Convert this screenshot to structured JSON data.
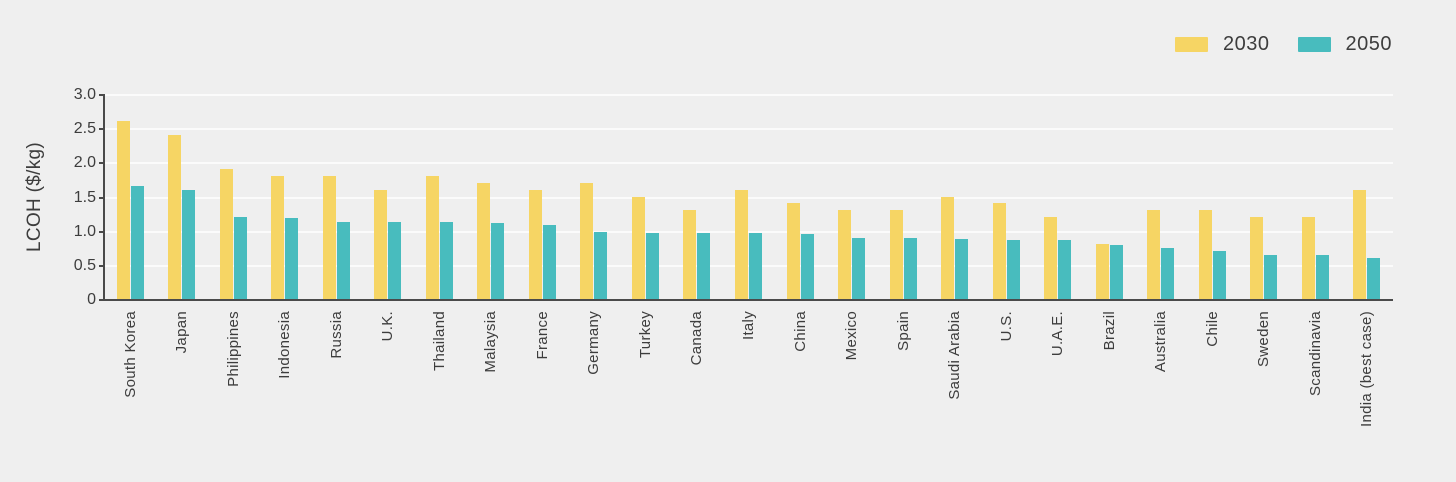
{
  "chart_data": {
    "type": "bar",
    "title": "",
    "xlabel": "",
    "ylabel": "LCOH ($/kg)",
    "ylim": [
      0,
      3.0
    ],
    "grid": "horizontal",
    "legend_position": "top-right",
    "background_color": "#efefef",
    "axis_color": "#4a4a4a",
    "text_color": "#3d3d3d",
    "yticks": [
      {
        "label": "3.0",
        "value": 3.0
      },
      {
        "label": "2.5",
        "value": 2.5
      },
      {
        "label": "2.0",
        "value": 2.0
      },
      {
        "label": "1.5",
        "value": 1.5
      },
      {
        "label": "1.0",
        "value": 1.0
      },
      {
        "label": "0.5",
        "value": 0.5
      },
      {
        "label": "0",
        "value": 0.0
      }
    ],
    "categories": [
      "South Korea",
      "Japan",
      "Philippines",
      "Indonesia",
      "Russia",
      "U.K.",
      "Thailand",
      "Malaysia",
      "France",
      "Germany",
      "Turkey",
      "Canada",
      "Italy",
      "China",
      "Mexico",
      "Spain",
      "Saudi Arabia",
      "U.S.",
      "U.A.E.",
      "Brazil",
      "Australia",
      "Chile",
      "Sweden",
      "Scandinavia",
      "India (best case)"
    ],
    "series": [
      {
        "name": "2030",
        "color": "#f6d564",
        "values": [
          2.6,
          2.4,
          1.9,
          1.8,
          1.8,
          1.6,
          1.8,
          1.7,
          1.6,
          1.7,
          1.5,
          1.3,
          1.6,
          1.4,
          1.3,
          1.3,
          1.5,
          1.4,
          1.2,
          0.8,
          1.3,
          1.3,
          1.2,
          1.2,
          1.6
        ]
      },
      {
        "name": "2050",
        "color": "#48bcbe",
        "values": [
          1.65,
          1.6,
          1.2,
          1.18,
          1.12,
          1.12,
          1.12,
          1.11,
          1.09,
          0.98,
          0.97,
          0.97,
          0.96,
          0.95,
          0.9,
          0.89,
          0.88,
          0.87,
          0.87,
          0.79,
          0.74,
          0.7,
          0.65,
          0.65,
          0.6
        ]
      }
    ]
  }
}
